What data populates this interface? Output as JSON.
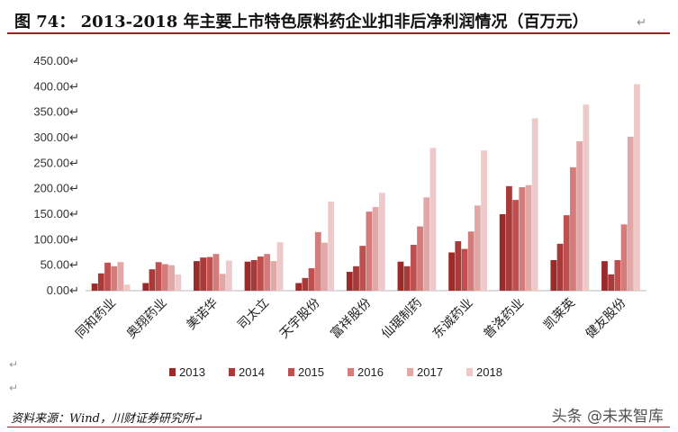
{
  "figure": {
    "title": "图 74： 2013-2018 年主要上市特色原料药企业扣非后净利润情况（百万元）",
    "title_mark": "↵",
    "source": "资料来源：Wind，川财证券研究所↵",
    "watermark": "头条 @未来智库"
  },
  "chart_data": {
    "type": "bar",
    "categories": [
      "同和药业",
      "奥翔药业",
      "美诺华",
      "司太立",
      "天宇股份",
      "富祥股份",
      "仙琚制药",
      "东诚药业",
      "普洛药业",
      "凯莱英",
      "健友股份"
    ],
    "series": [
      {
        "name": "2013",
        "color": "#9b2a2a",
        "values": [
          14,
          15,
          58,
          57,
          15,
          37,
          57,
          75,
          150,
          60,
          58
        ]
      },
      {
        "name": "2014",
        "color": "#a93a3a",
        "values": [
          34,
          42,
          65,
          60,
          25,
          48,
          48,
          97,
          205,
          92,
          32
        ]
      },
      {
        "name": "2015",
        "color": "#c05050",
        "values": [
          55,
          56,
          66,
          67,
          44,
          88,
          90,
          82,
          178,
          148,
          60
        ]
      },
      {
        "name": "2016",
        "color": "#d47b7b",
        "values": [
          48,
          52,
          72,
          72,
          115,
          155,
          126,
          116,
          203,
          242,
          130
        ]
      },
      {
        "name": "2017",
        "color": "#e2a7a7",
        "values": [
          56,
          50,
          33,
          58,
          94,
          164,
          183,
          167,
          207,
          293,
          302
        ]
      },
      {
        "name": "2018",
        "color": "#eec9c9",
        "values": [
          12,
          32,
          59,
          95,
          175,
          192,
          280,
          275,
          338,
          365,
          405
        ]
      }
    ],
    "ylim": [
      0,
      450
    ],
    "yticks": [
      "0.00↵",
      "50.00↵",
      "100.00↵",
      "150.00↵",
      "200.00↵",
      "250.00↵",
      "300.00↵",
      "350.00↵",
      "400.00↵",
      "450.00↵"
    ],
    "legend_position": "bottom",
    "grid": false
  }
}
